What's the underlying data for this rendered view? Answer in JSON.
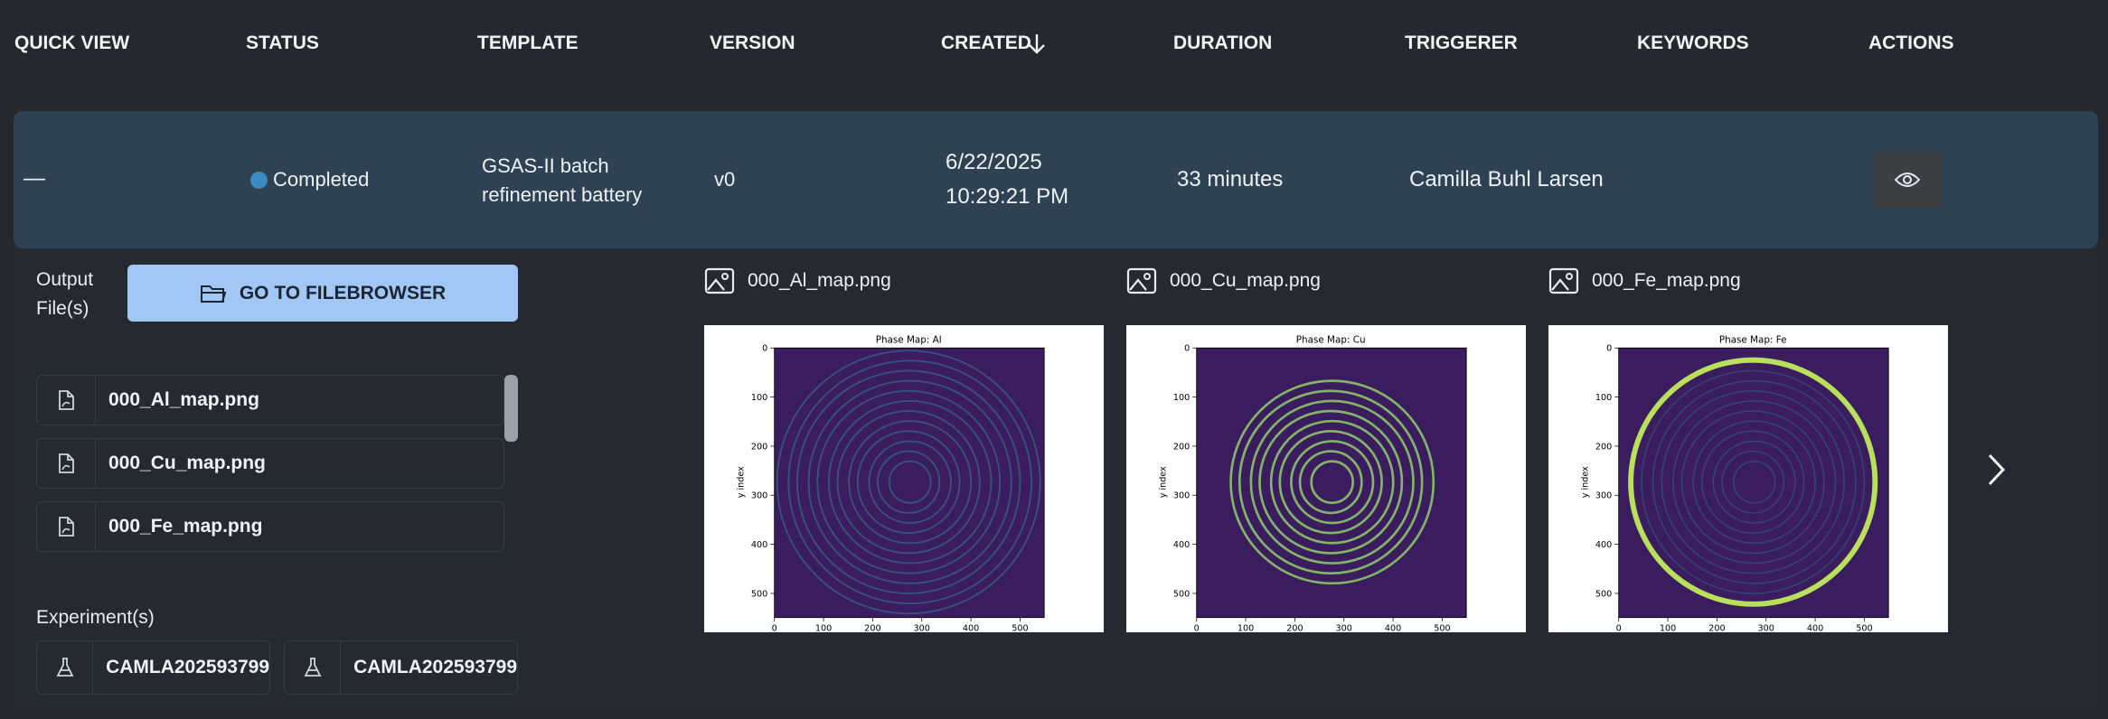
{
  "table": {
    "headers": [
      "QUICK VIEW",
      "STATUS",
      "TEMPLATE",
      "VERSION",
      "CREATED",
      "DURATION",
      "TRIGGERER",
      "KEYWORDS",
      "ACTIONS"
    ],
    "rows": [
      {
        "quick_view": "—",
        "status": "Completed",
        "template": "GSAS-II batch refinement battery",
        "version": "v0",
        "created": [
          "6/22/2025",
          "10:29:21 PM"
        ],
        "duration": "33 minutes",
        "triggerer": "Camilla Buhl Larsen"
      }
    ]
  },
  "details": {
    "output_label": "Output File(s)",
    "button": "GO TO FILEBROWSER",
    "files": [
      "000_Al_map.png",
      "000_Cu_map.png",
      "000_Fe_map.png"
    ],
    "experiments_label": "Experiment(s)",
    "experiments": [
      "CAMLA202593799",
      "CAMLA202593799"
    ],
    "previews": [
      {
        "filename": "000_Al_map.png",
        "title": "Phase Map: Al",
        "ylabel": "y index",
        "xticks": [
          0,
          100,
          200,
          300,
          400,
          500
        ],
        "yticks": [
          0,
          100,
          200,
          300,
          400,
          500
        ]
      },
      {
        "filename": "000_Cu_map.png",
        "title": "Phase Map: Cu",
        "ylabel": "y index",
        "xticks": [
          0,
          100,
          200,
          300,
          400,
          500
        ],
        "yticks": [
          0,
          100,
          200,
          300,
          400,
          500
        ]
      },
      {
        "filename": "000_Fe_map.png",
        "title": "Phase Map: Fe",
        "ylabel": "y index",
        "xticks": [
          0,
          100,
          200,
          300,
          400,
          500
        ],
        "yticks": [
          0,
          100,
          200,
          300,
          400,
          500
        ]
      }
    ]
  }
}
